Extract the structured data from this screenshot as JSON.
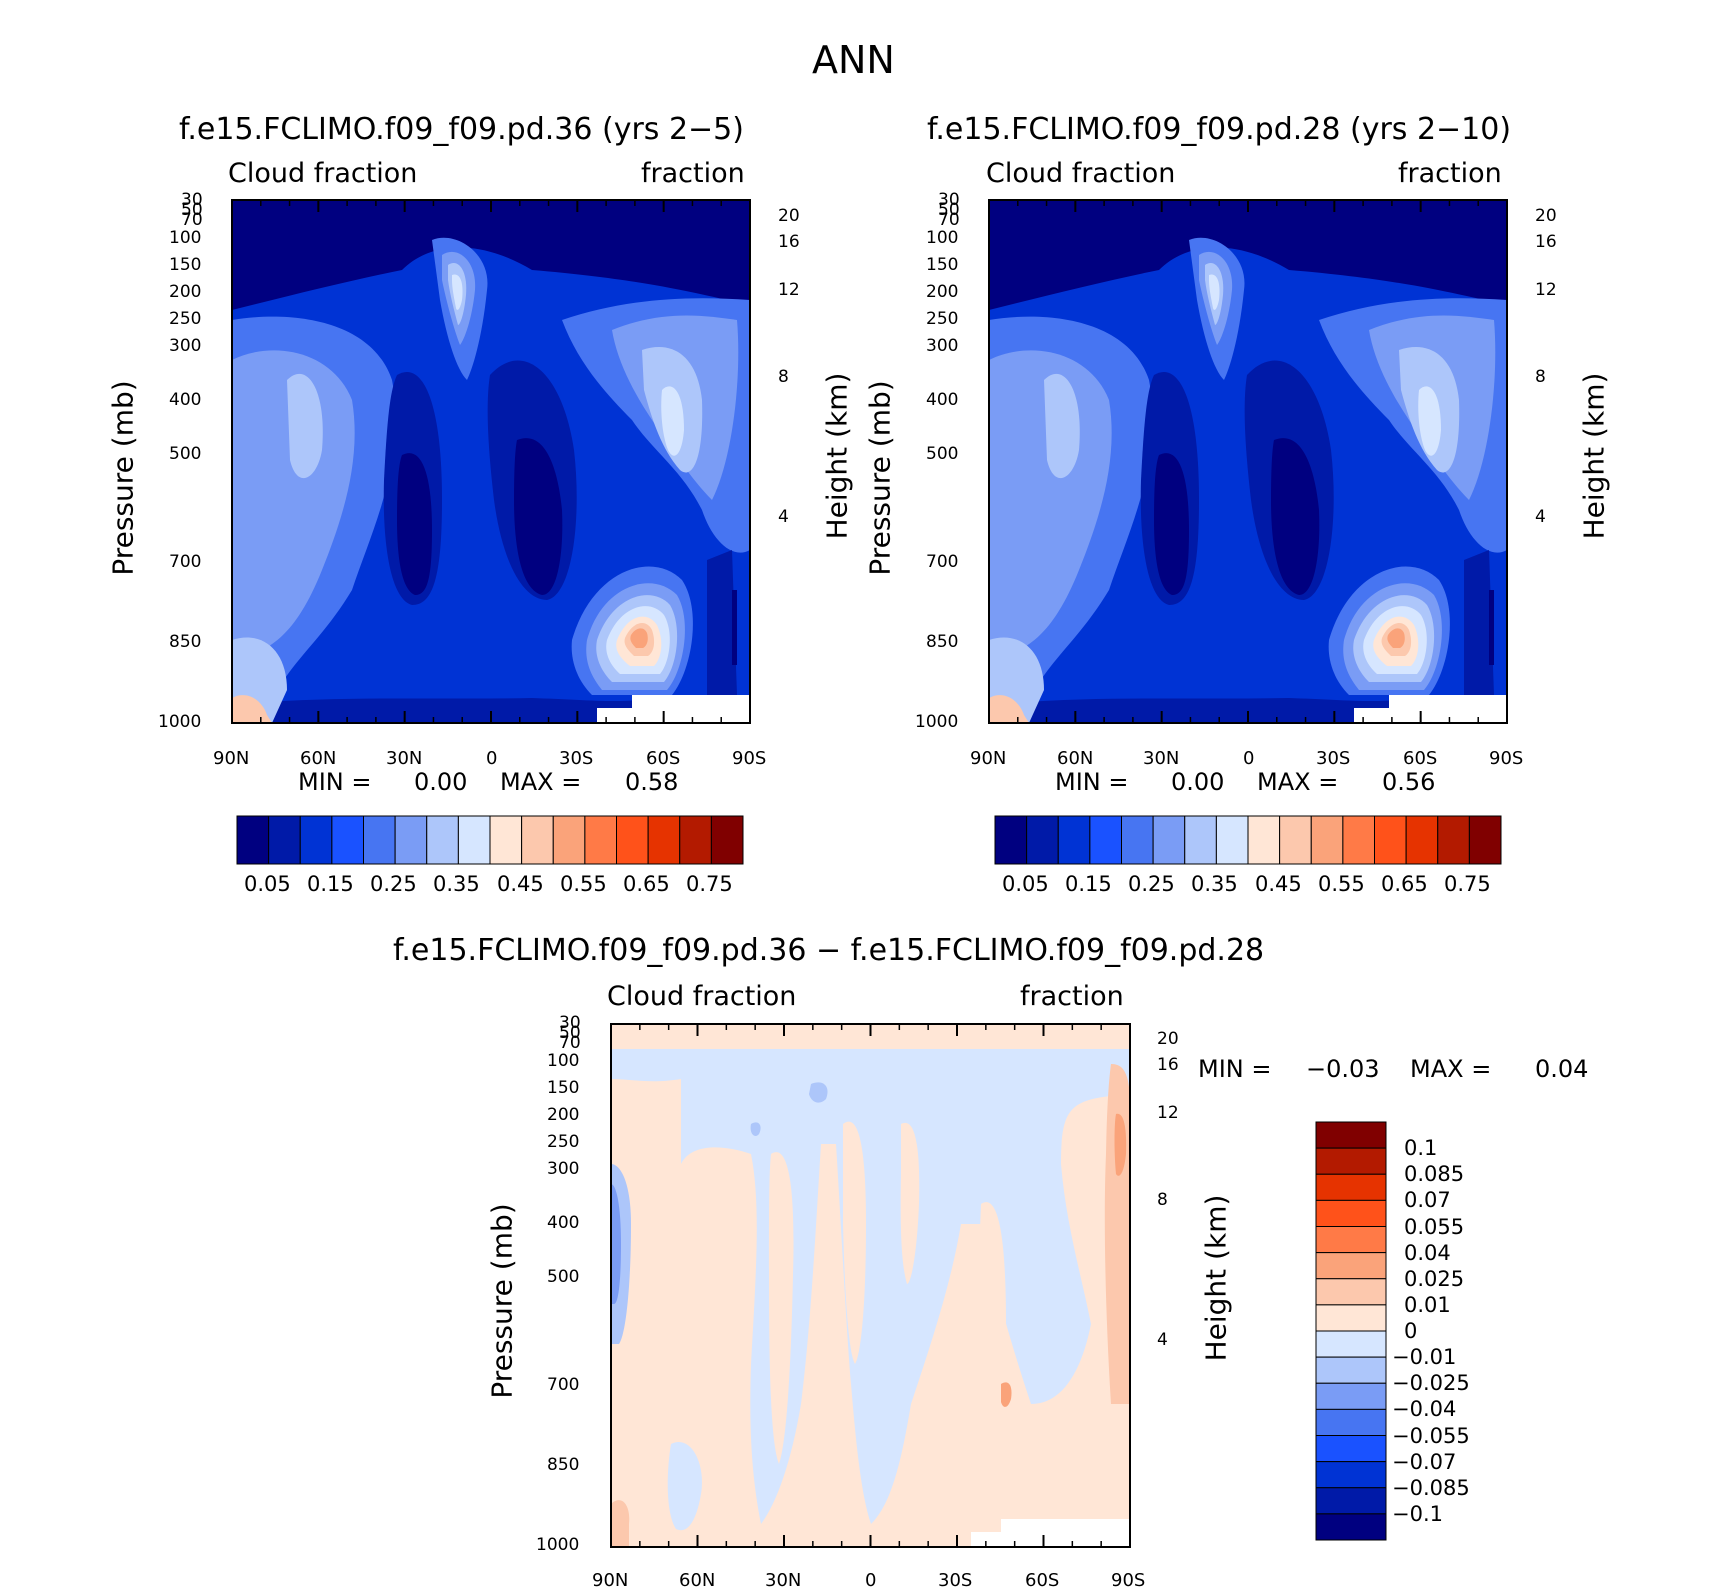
{
  "main_title": "ANN",
  "colors": {
    "blues": [
      "#000080",
      "#001aa8",
      "#0033d4",
      "#1a52ff",
      "#4775f2",
      "#7a9cf5",
      "#adc6fa",
      "#d6e6ff"
    ],
    "reds": [
      "#ffe6d6",
      "#fcc8ad",
      "#faa37a",
      "#ff7a47",
      "#ff521a",
      "#e63300",
      "#b31a00",
      "#800000"
    ]
  },
  "chart_data": [
    {
      "id": "panel1",
      "type": "heatmap",
      "subtype": "filled-contour latitude-pressure cross-section",
      "title": "f.e15.FCLIMO.f09_f09.pd.36 (yrs 2−5)",
      "left_label": "Cloud fraction",
      "right_label": "fraction",
      "ylabel": "Pressure (mb)",
      "ylabel_right": "Height (km)",
      "x_ticks": [
        "90N",
        "60N",
        "30N",
        "0",
        "30S",
        "60S",
        "90S"
      ],
      "y_ticks": [
        "30",
        "50",
        "70",
        "100",
        "150",
        "200",
        "250",
        "300",
        "400",
        "500",
        "700",
        "850",
        "1000"
      ],
      "y_ticks_right": [
        "20",
        "16",
        "12",
        "8",
        "4"
      ],
      "ylim": [
        1000,
        30
      ],
      "min_label": "MIN =",
      "min_value": "0.00",
      "max_label": "MAX =",
      "max_value": "0.58",
      "min": 0.0,
      "max": 0.58,
      "colorbar": [
        "0.05",
        "0.15",
        "0.25",
        "0.35",
        "0.45",
        "0.55",
        "0.65",
        "0.75"
      ]
    },
    {
      "id": "panel2",
      "type": "heatmap",
      "subtype": "filled-contour latitude-pressure cross-section",
      "title": "f.e15.FCLIMO.f09_f09.pd.28 (yrs 2−10)",
      "left_label": "Cloud fraction",
      "right_label": "fraction",
      "ylabel": "Pressure (mb)",
      "ylabel_right": "Height (km)",
      "x_ticks": [
        "90N",
        "60N",
        "30N",
        "0",
        "30S",
        "60S",
        "90S"
      ],
      "y_ticks": [
        "30",
        "50",
        "70",
        "100",
        "150",
        "200",
        "250",
        "300",
        "400",
        "500",
        "700",
        "850",
        "1000"
      ],
      "y_ticks_right": [
        "20",
        "16",
        "12",
        "8",
        "4"
      ],
      "ylim": [
        1000,
        30
      ],
      "min_label": "MIN =",
      "min_value": "0.00",
      "max_label": "MAX =",
      "max_value": "0.56",
      "min": 0.0,
      "max": 0.56,
      "colorbar": [
        "0.05",
        "0.15",
        "0.25",
        "0.35",
        "0.45",
        "0.55",
        "0.65",
        "0.75"
      ]
    },
    {
      "id": "panel3",
      "type": "heatmap",
      "subtype": "filled-contour difference latitude-pressure cross-section",
      "title": "f.e15.FCLIMO.f09_f09.pd.36 − f.e15.FCLIMO.f09_f09.pd.28",
      "left_label": "Cloud fraction",
      "right_label": "fraction",
      "ylabel": "Pressure (mb)",
      "ylabel_right": "Height (km)",
      "x_ticks": [
        "90N",
        "60N",
        "30N",
        "0",
        "30S",
        "60S",
        "90S"
      ],
      "y_ticks": [
        "30",
        "50",
        "70",
        "100",
        "150",
        "200",
        "250",
        "300",
        "400",
        "500",
        "700",
        "850",
        "1000"
      ],
      "y_ticks_right": [
        "20",
        "16",
        "12",
        "8",
        "4"
      ],
      "ylim": [
        1000,
        30
      ],
      "min_label": "MIN =",
      "min_value": "−0.03",
      "max_label": "MAX =",
      "max_value": "0.04",
      "min": -0.03,
      "max": 0.04,
      "colorbar": [
        "0.1",
        "0.085",
        "0.07",
        "0.055",
        "0.04",
        "0.025",
        "0.01",
        "0",
        "−0.01",
        "−0.025",
        "−0.04",
        "−0.055",
        "−0.07",
        "−0.085",
        "−0.1"
      ]
    }
  ]
}
